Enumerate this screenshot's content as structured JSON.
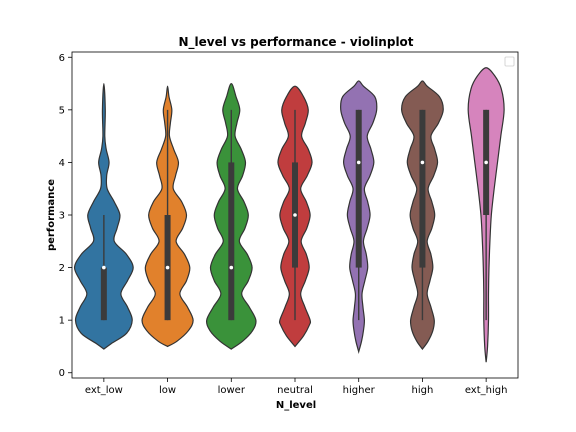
{
  "chart_data": {
    "type": "violin",
    "title": "N_level vs performance - violinplot",
    "xlabel": "N_level",
    "ylabel": "performance",
    "ylim": [
      -0.1,
      6.1
    ],
    "yticks": [
      0,
      1,
      2,
      3,
      4,
      5,
      6
    ],
    "grid": false,
    "legend": "top-right (empty)",
    "categories": [
      "ext_low",
      "low",
      "lower",
      "neutral",
      "higher",
      "high",
      "ext_high"
    ],
    "series": [
      {
        "category": "ext_low",
        "color": "#3274a1",
        "q1": 1,
        "median": 2,
        "q3": 2,
        "whisker_low": 1,
        "whisker_high": 3,
        "profile": [
          [
            0.45,
            0.0
          ],
          [
            0.55,
            0.15
          ],
          [
            0.75,
            0.48
          ],
          [
            1.0,
            0.6
          ],
          [
            1.25,
            0.5
          ],
          [
            1.5,
            0.36
          ],
          [
            1.75,
            0.5
          ],
          [
            2.0,
            0.62
          ],
          [
            2.25,
            0.48
          ],
          [
            2.5,
            0.22
          ],
          [
            2.75,
            0.28
          ],
          [
            3.0,
            0.34
          ],
          [
            3.25,
            0.22
          ],
          [
            3.5,
            0.07
          ],
          [
            3.75,
            0.06
          ],
          [
            4.0,
            0.11
          ],
          [
            4.25,
            0.05
          ],
          [
            4.5,
            0.02
          ],
          [
            5.0,
            0.03
          ],
          [
            5.5,
            0.0
          ]
        ]
      },
      {
        "category": "low",
        "color": "#e1812c",
        "q1": 1,
        "median": 2,
        "q3": 3,
        "whisker_low": 1,
        "whisker_high": 5,
        "profile": [
          [
            0.5,
            0.0
          ],
          [
            0.6,
            0.2
          ],
          [
            0.8,
            0.44
          ],
          [
            1.0,
            0.54
          ],
          [
            1.25,
            0.42
          ],
          [
            1.5,
            0.26
          ],
          [
            1.75,
            0.4
          ],
          [
            2.0,
            0.47
          ],
          [
            2.25,
            0.36
          ],
          [
            2.5,
            0.18
          ],
          [
            2.75,
            0.32
          ],
          [
            3.0,
            0.4
          ],
          [
            3.25,
            0.3
          ],
          [
            3.5,
            0.12
          ],
          [
            3.75,
            0.17
          ],
          [
            4.0,
            0.23
          ],
          [
            4.25,
            0.13
          ],
          [
            4.5,
            0.04
          ],
          [
            4.75,
            0.06
          ],
          [
            5.0,
            0.09
          ],
          [
            5.25,
            0.03
          ],
          [
            5.45,
            0.0
          ]
        ]
      },
      {
        "category": "lower",
        "color": "#3a923a",
        "q1": 1,
        "median": 2,
        "q3": 4,
        "whisker_low": 1,
        "whisker_high": 5,
        "profile": [
          [
            0.45,
            0.0
          ],
          [
            0.6,
            0.24
          ],
          [
            0.8,
            0.45
          ],
          [
            1.0,
            0.52
          ],
          [
            1.25,
            0.38
          ],
          [
            1.5,
            0.22
          ],
          [
            1.75,
            0.36
          ],
          [
            2.0,
            0.44
          ],
          [
            2.25,
            0.34
          ],
          [
            2.5,
            0.17
          ],
          [
            2.75,
            0.29
          ],
          [
            3.0,
            0.36
          ],
          [
            3.25,
            0.27
          ],
          [
            3.5,
            0.13
          ],
          [
            3.75,
            0.24
          ],
          [
            4.0,
            0.3
          ],
          [
            4.25,
            0.21
          ],
          [
            4.5,
            0.08
          ],
          [
            4.75,
            0.12
          ],
          [
            5.0,
            0.18
          ],
          [
            5.25,
            0.1
          ],
          [
            5.5,
            0.0
          ]
        ]
      },
      {
        "category": "neutral",
        "color": "#c03d3e",
        "q1": 2,
        "median": 3,
        "q3": 4,
        "whisker_low": 1,
        "whisker_high": 5,
        "profile": [
          [
            0.5,
            0.0
          ],
          [
            0.7,
            0.18
          ],
          [
            0.9,
            0.3
          ],
          [
            1.0,
            0.32
          ],
          [
            1.25,
            0.21
          ],
          [
            1.5,
            0.12
          ],
          [
            1.75,
            0.22
          ],
          [
            2.0,
            0.3
          ],
          [
            2.25,
            0.24
          ],
          [
            2.5,
            0.13
          ],
          [
            2.75,
            0.25
          ],
          [
            3.0,
            0.32
          ],
          [
            3.25,
            0.24
          ],
          [
            3.5,
            0.12
          ],
          [
            3.75,
            0.26
          ],
          [
            4.0,
            0.36
          ],
          [
            4.25,
            0.28
          ],
          [
            4.5,
            0.14
          ],
          [
            4.75,
            0.22
          ],
          [
            5.0,
            0.28
          ],
          [
            5.25,
            0.18
          ],
          [
            5.45,
            0.0
          ]
        ]
      },
      {
        "category": "higher",
        "color": "#9372b2",
        "q1": 2,
        "median": 4,
        "q3": 5,
        "whisker_low": 1,
        "whisker_high": 5,
        "profile": [
          [
            0.4,
            0.0
          ],
          [
            0.6,
            0.06
          ],
          [
            0.8,
            0.1
          ],
          [
            1.0,
            0.12
          ],
          [
            1.25,
            0.09
          ],
          [
            1.5,
            0.07
          ],
          [
            1.75,
            0.13
          ],
          [
            2.0,
            0.19
          ],
          [
            2.25,
            0.16
          ],
          [
            2.5,
            0.1
          ],
          [
            2.75,
            0.18
          ],
          [
            3.0,
            0.24
          ],
          [
            3.25,
            0.19
          ],
          [
            3.5,
            0.12
          ],
          [
            3.75,
            0.24
          ],
          [
            4.0,
            0.32
          ],
          [
            4.25,
            0.26
          ],
          [
            4.5,
            0.18
          ],
          [
            4.75,
            0.3
          ],
          [
            5.0,
            0.38
          ],
          [
            5.25,
            0.34
          ],
          [
            5.45,
            0.1
          ],
          [
            5.55,
            0.0
          ]
        ]
      },
      {
        "category": "high",
        "color": "#845b53",
        "q1": 2,
        "median": 4,
        "q3": 5,
        "whisker_low": 1,
        "whisker_high": 5,
        "profile": [
          [
            0.45,
            0.0
          ],
          [
            0.6,
            0.12
          ],
          [
            0.8,
            0.22
          ],
          [
            1.0,
            0.25
          ],
          [
            1.25,
            0.18
          ],
          [
            1.5,
            0.1
          ],
          [
            1.75,
            0.16
          ],
          [
            2.0,
            0.22
          ],
          [
            2.25,
            0.18
          ],
          [
            2.5,
            0.1
          ],
          [
            2.75,
            0.2
          ],
          [
            3.0,
            0.26
          ],
          [
            3.25,
            0.2
          ],
          [
            3.5,
            0.12
          ],
          [
            3.75,
            0.24
          ],
          [
            4.0,
            0.32
          ],
          [
            4.25,
            0.26
          ],
          [
            4.5,
            0.18
          ],
          [
            4.75,
            0.34
          ],
          [
            5.0,
            0.44
          ],
          [
            5.25,
            0.36
          ],
          [
            5.45,
            0.1
          ],
          [
            5.55,
            0.0
          ]
        ]
      },
      {
        "category": "ext_high",
        "color": "#d684bd",
        "q1": 3,
        "median": 4,
        "q3": 5,
        "whisker_low": 1,
        "whisker_high": 5,
        "profile": [
          [
            0.2,
            0.0
          ],
          [
            0.5,
            0.03
          ],
          [
            1.0,
            0.05
          ],
          [
            1.5,
            0.05
          ],
          [
            2.0,
            0.06
          ],
          [
            2.5,
            0.08
          ],
          [
            3.0,
            0.11
          ],
          [
            3.5,
            0.17
          ],
          [
            4.0,
            0.24
          ],
          [
            4.5,
            0.31
          ],
          [
            5.0,
            0.38
          ],
          [
            5.4,
            0.32
          ],
          [
            5.65,
            0.18
          ],
          [
            5.8,
            0.0
          ]
        ]
      }
    ]
  }
}
